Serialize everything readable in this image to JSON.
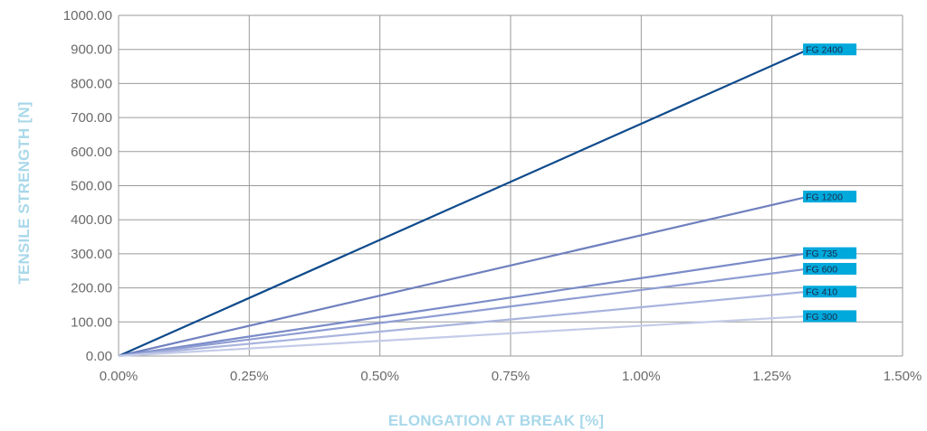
{
  "chart_data": {
    "type": "line",
    "xlabel": "ELONGATION AT BREAK [%]",
    "ylabel": "TENSILE STRENGTH [N]",
    "xlim": [
      0,
      1.5
    ],
    "ylim": [
      0,
      1000
    ],
    "x_ticks": [
      "0.00%",
      "0.25%",
      "0.50%",
      "0.75%",
      "1.00%",
      "1.25%",
      "1.50%"
    ],
    "y_ticks": [
      "0.00",
      "100.00",
      "200.00",
      "300.00",
      "400.00",
      "500.00",
      "600.00",
      "700.00",
      "800.00",
      "900.00",
      "1000.00"
    ],
    "grid": true,
    "series": [
      {
        "name": "FG 2400",
        "x": [
          0,
          1.32
        ],
        "y": [
          0,
          900
        ],
        "color": "#0d4a8c"
      },
      {
        "name": "FG 1200",
        "x": [
          0,
          1.32
        ],
        "y": [
          0,
          468
        ],
        "color": "#6f80bf"
      },
      {
        "name": "FG 735",
        "x": [
          0,
          1.32
        ],
        "y": [
          0,
          302
        ],
        "color": "#7a8bc8"
      },
      {
        "name": "FG 600",
        "x": [
          0,
          1.32
        ],
        "y": [
          0,
          256
        ],
        "color": "#8e9dd2"
      },
      {
        "name": "FG 410",
        "x": [
          0,
          1.32
        ],
        "y": [
          0,
          189
        ],
        "color": "#a9b4de"
      },
      {
        "name": "FG 300",
        "x": [
          0,
          1.32
        ],
        "y": [
          0,
          117
        ],
        "color": "#c4cbe8"
      }
    ],
    "label_color": "#00a9dc"
  }
}
